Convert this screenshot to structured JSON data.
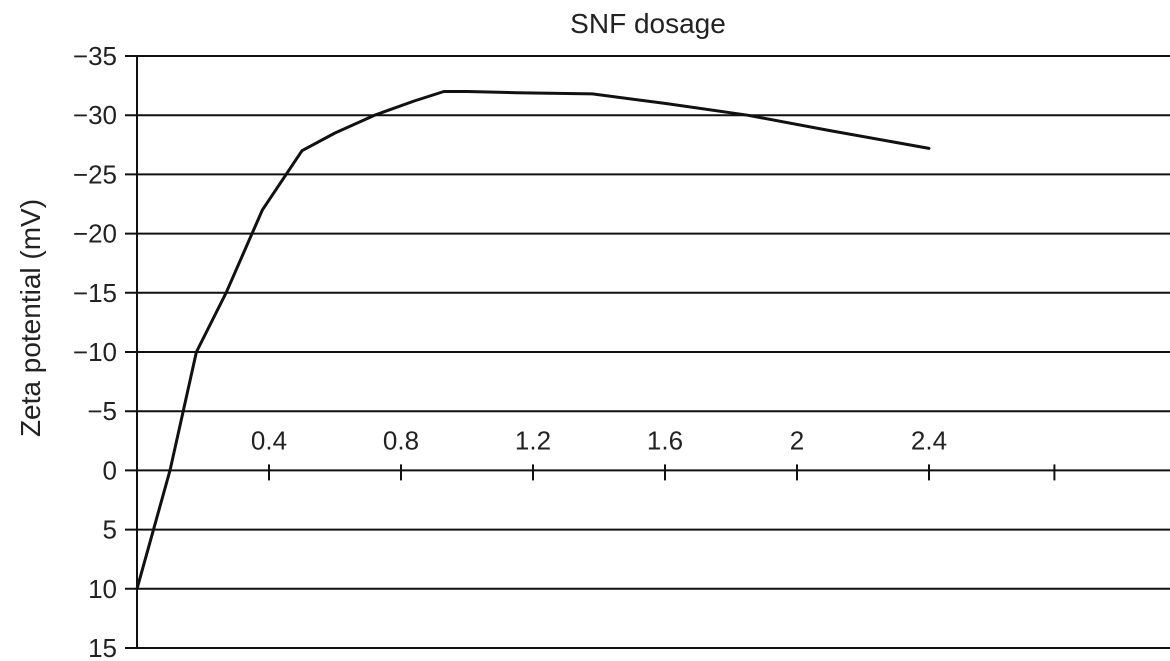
{
  "chart_data": {
    "type": "line",
    "title": "SNF dosage",
    "ylabel": "Zeta potential (mV)",
    "xlabel": "",
    "ylim": [
      15,
      -35
    ],
    "xlim": [
      0,
      2.8
    ],
    "y_ticks": [
      -35,
      -30,
      -25,
      -20,
      -15,
      -10,
      -5,
      0,
      5,
      10,
      15
    ],
    "y_tick_labels": [
      "−35",
      "−30",
      "−25",
      "−20",
      "−15",
      "−10",
      "−5",
      "0",
      "5",
      "10",
      "15"
    ],
    "x_ticks": [
      0.4,
      0.8,
      1.2,
      1.6,
      2.0,
      2.4,
      2.78
    ],
    "x_tick_labels": [
      "0.4",
      "0.8",
      "1.2",
      "1.6",
      "2",
      "2.4",
      ""
    ],
    "grid": true,
    "series": [
      {
        "x": [
          0.0,
          0.1,
          0.18,
          0.27,
          0.38,
          0.5,
          0.6,
          0.72,
          0.84,
          0.93,
          1.0,
          1.15,
          1.38,
          1.6,
          1.85,
          2.1,
          2.4
        ],
        "values": [
          10,
          0,
          -10,
          -15,
          -22,
          -27,
          -28.5,
          -30,
          -31.2,
          -32,
          -32,
          -31.9,
          -31.8,
          -31,
          -30,
          -28.7,
          -27.2
        ]
      }
    ]
  }
}
